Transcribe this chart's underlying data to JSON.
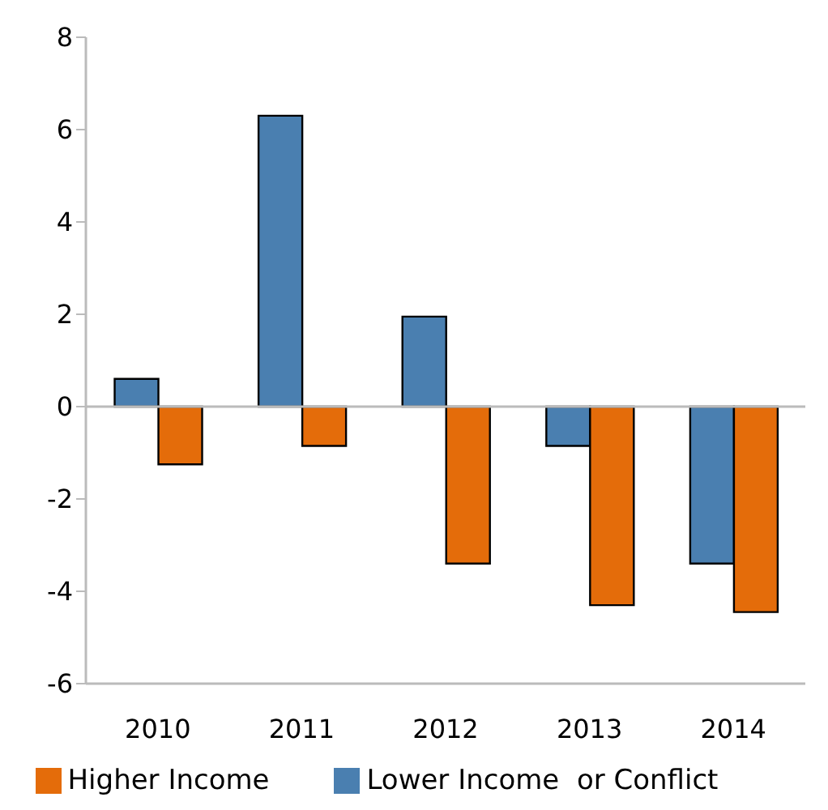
{
  "chart_data": {
    "type": "bar",
    "categories": [
      "2010",
      "2011",
      "2012",
      "2013",
      "2014"
    ],
    "series": [
      {
        "name": "Lower Income  or Conflict",
        "color": "#4a7fb0",
        "values": [
          0.6,
          6.3,
          1.95,
          -0.85,
          -3.4
        ]
      },
      {
        "name": "Higher Income",
        "color": "#e46c0a",
        "values": [
          -1.25,
          -0.85,
          -3.4,
          -4.3,
          -4.45
        ]
      }
    ],
    "ylim": [
      -6,
      8
    ],
    "yticks": [
      -6,
      -4,
      -2,
      0,
      2,
      4,
      6,
      8
    ],
    "ref_lines": [
      {
        "axis": "y",
        "value": 0,
        "color": "#bbbbbb"
      }
    ],
    "legend": "bottom"
  }
}
